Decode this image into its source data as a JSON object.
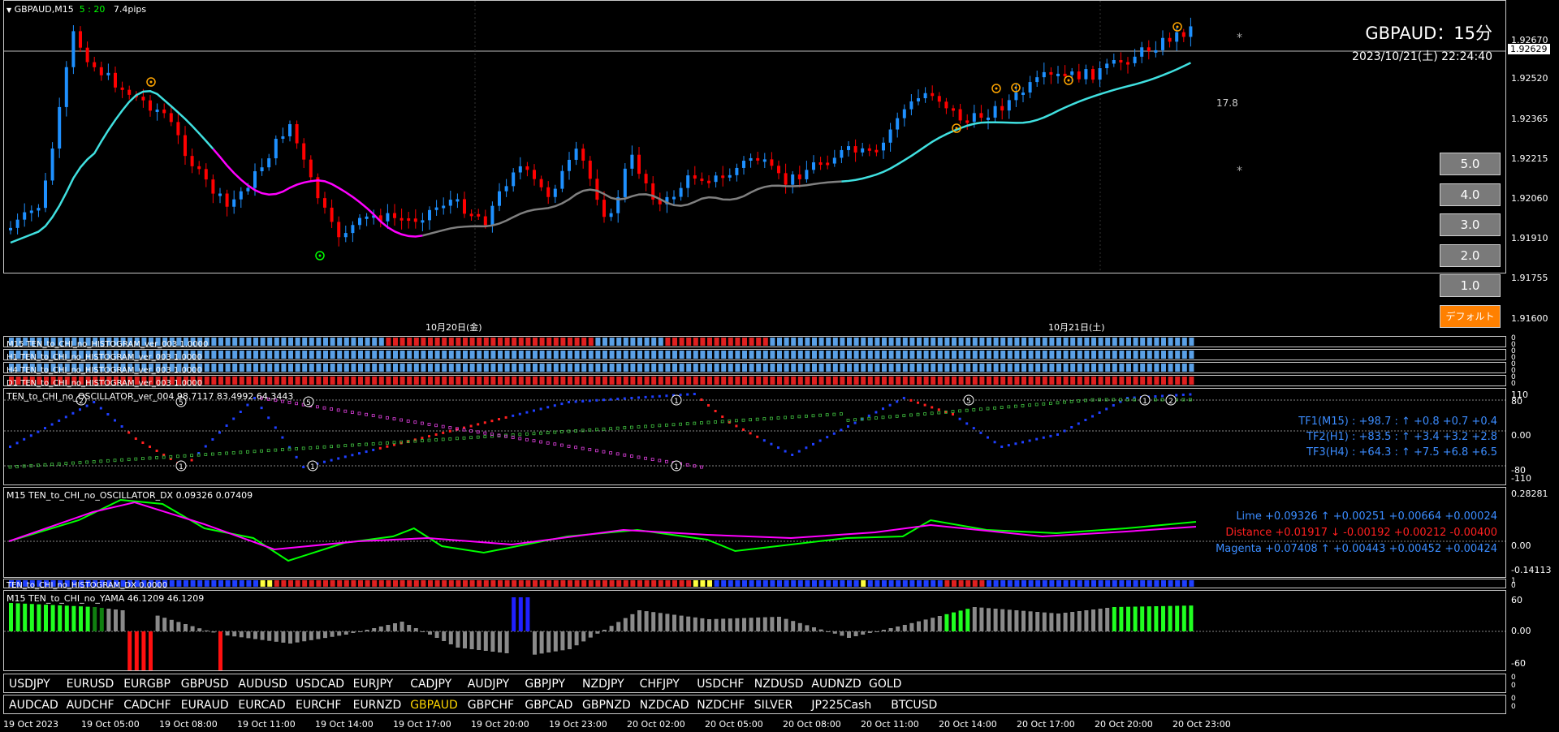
{
  "header": {
    "symbol_tf": "GBPAUD,M15",
    "timer": "5 : 20",
    "spread": "7.4pips"
  },
  "title_block": {
    "title": "GBPAUD：15分",
    "datetime": "2023/10/21(土) 22:24:40"
  },
  "price_axis": {
    "ticks": [
      "1.92670",
      "1.92520",
      "1.92365",
      "1.92215",
      "1.92060",
      "1.91910",
      "1.91755",
      "1.91600"
    ],
    "current": "1.92629"
  },
  "annotations": {
    "distance": "17.8",
    "star1": "*",
    "star2": "*"
  },
  "date_labels": {
    "d1": "10月20日(金)",
    "d2": "10月21日(土)"
  },
  "buttons": [
    "5.0",
    "4.0",
    "3.0",
    "2.0",
    "1.0"
  ],
  "default_button": "デフォルト",
  "histograms": [
    {
      "label": "M15 TEN_to_CHI_no_HISTOGRAM_ver_003 1.0000"
    },
    {
      "label": "H1 TEN_to_CHI_no_HISTOGRAM_ver_003 1.0000"
    },
    {
      "label": "H4 TEN_to_CHI_no_HISTOGRAM_ver_003 1.0000"
    },
    {
      "label": "D1 TEN_to_CHI_no_HISTOGRAM_ver_003 1.0000"
    }
  ],
  "hist_axis": [
    "0",
    "0",
    "0",
    "0",
    "0",
    "0",
    "0",
    "0"
  ],
  "oscillator": {
    "label": "TEN_to_CHI_no_OSCILLATOR_ver_004 98.7117 83.4992 64.3443",
    "axis": [
      "110",
      "80",
      "0.00",
      "-80",
      "-110"
    ],
    "tf1": "TF1(M15) : +98.7 : ↑ +0.8 +0.7 +0.4",
    "tf2": "TF2(H1) : +83.5 : ↑ +3.4 +3.2 +2.8",
    "tf3": "TF3(H4) : +64.3 : ↑ +7.5 +6.8 +6.5",
    "markers": [
      "2",
      "5",
      "5",
      "1",
      "1",
      "1",
      "5",
      "1",
      "1",
      "2"
    ]
  },
  "dx": {
    "label": "M15 TEN_to_CHI_no_OSCILLATOR_DX  0.09326 0.07409",
    "axis": [
      "0.28281",
      "0.00",
      "-0.14113"
    ],
    "lime": "Lime +0.09326 ↑ +0.00251 +0.00664 +0.00024",
    "distance": "Distance +0.01917 ↓ -0.00192 +0.00212 -0.00400",
    "magenta": "Magenta +0.07408 ↑ +0.00443 +0.00452 +0.00424"
  },
  "hist_dx": {
    "label": "TEN_to_CHI_no_HISTOGRAM_DX 0.0000",
    "axis": [
      "1",
      "0"
    ]
  },
  "yama": {
    "label": "M15  TEN_to_CHI_no_YAMA  46.1209 46.1209",
    "axis": [
      "60",
      "0.00",
      "-60"
    ]
  },
  "symbols_row1": [
    "USDJPY",
    "EURUSD",
    "EURGBP",
    "GBPUSD",
    "AUDUSD",
    "USDCAD",
    "EURJPY",
    "CADJPY",
    "AUDJPY",
    "GBPJPY",
    "NZDJPY",
    "CHFJPY",
    "USDCHF",
    "NZDUSD",
    "AUDNZD",
    "GOLD"
  ],
  "symbols_row2": [
    "AUDCAD",
    "AUDCHF",
    "CADCHF",
    "EURAUD",
    "EURCAD",
    "EURCHF",
    "EURNZD",
    "GBPAUD",
    "GBPCHF",
    "GBPCAD",
    "GBPNZD",
    "NZDCAD",
    "NZDCHF",
    "SILVER",
    "JP225Cash",
    "BTCUSD"
  ],
  "row_axis": [
    "0",
    "0",
    "0",
    "0"
  ],
  "active_symbol": "GBPAUD",
  "time_axis": [
    "19 Oct 2023",
    "19 Oct 05:00",
    "19 Oct 08:00",
    "19 Oct 11:00",
    "19 Oct 14:00",
    "19 Oct 17:00",
    "19 Oct 20:00",
    "19 Oct 23:00",
    "20 Oct 02:00",
    "20 Oct 05:00",
    "20 Oct 08:00",
    "20 Oct 11:00",
    "20 Oct 14:00",
    "20 Oct 17:00",
    "20 Oct 20:00",
    "20 Oct 23:00"
  ],
  "colors": {
    "bull": "#1e90ff",
    "bear": "#ff0000",
    "ma_cyan": "#40e0e0",
    "ma_magenta": "#ff00ff",
    "ma_gray": "#808080",
    "lime": "#00ff00",
    "marker_orange": "#ffa500",
    "marker_green": "#00ff00"
  }
}
